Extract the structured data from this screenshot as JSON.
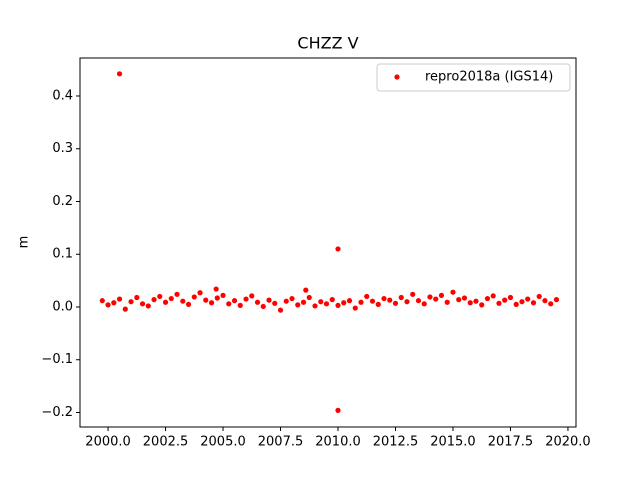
{
  "chart_data": {
    "type": "scatter",
    "title": "CHZZ V",
    "ylabel": "m",
    "xlim": [
      1998.78,
      2020.35
    ],
    "ylim": [
      -0.2275,
      0.472
    ],
    "xticks": [
      {
        "value": 2000,
        "label": "2000.0"
      },
      {
        "value": 2002.5,
        "label": "2002.5"
      },
      {
        "value": 2005,
        "label": "2005.0"
      },
      {
        "value": 2007.5,
        "label": "2007.5"
      },
      {
        "value": 2010,
        "label": "2010.0"
      },
      {
        "value": 2012.5,
        "label": "2012.5"
      },
      {
        "value": 2015,
        "label": "2015.0"
      },
      {
        "value": 2017.5,
        "label": "2017.5"
      },
      {
        "value": 2020,
        "label": "2020.0"
      }
    ],
    "yticks": [
      {
        "value": -0.2,
        "label": "−0.2"
      },
      {
        "value": -0.1,
        "label": "−0.1"
      },
      {
        "value": 0,
        "label": "0.0"
      },
      0.1,
      0.2,
      0.3,
      0.4
    ],
    "legend": "upper right",
    "series": [
      {
        "name": "repro2018a (IGS14)",
        "color": "#ff0000",
        "x": [
          1999.75,
          2000,
          2000.25,
          2000.5,
          2000.75,
          2001,
          2001.25,
          2001.5,
          2001.75,
          2002,
          2002.25,
          2002.5,
          2002.75,
          2003,
          2003.25,
          2003.5,
          2003.75,
          2004,
          2004.25,
          2004.5,
          2004.75,
          2005,
          2005.25,
          2005.5,
          2005.75,
          2006,
          2006.25,
          2006.5,
          2006.75,
          2007,
          2007.25,
          2007.5,
          2007.75,
          2008,
          2008.25,
          2008.5,
          2008.75,
          2009,
          2009.25,
          2009.5,
          2009.75,
          2010,
          2010.25,
          2010.5,
          2010.75,
          2011,
          2011.25,
          2011.5,
          2011.75,
          2012,
          2012.25,
          2012.5,
          2012.75,
          2013,
          2013.25,
          2013.5,
          2013.75,
          2014,
          2014.25,
          2014.5,
          2014.75,
          2015,
          2015.25,
          2015.5,
          2015.75,
          2016,
          2016.25,
          2016.5,
          2016.75,
          2017,
          2017.25,
          2017.5,
          2017.75,
          2018,
          2018.25,
          2018.5,
          2018.75,
          2019,
          2019.25,
          2019.5,
          2000.5,
          2004.7,
          2008.6,
          2010,
          2010
        ],
        "values": [
          0.012,
          0.004,
          0.008,
          0.015,
          -0.004,
          0.01,
          0.018,
          0.006,
          0.002,
          0.014,
          0.02,
          0.009,
          0.016,
          0.024,
          0.011,
          0.005,
          0.019,
          0.027,
          0.013,
          0.008,
          0.017,
          0.022,
          0.006,
          0.012,
          0.003,
          0.015,
          0.021,
          0.009,
          0.001,
          0.013,
          0.007,
          -0.006,
          0.011,
          0.016,
          0.004,
          0.009,
          0.018,
          0.002,
          0.01,
          0.006,
          0.014,
          0.003,
          0.008,
          0.012,
          -0.002,
          0.009,
          0.02,
          0.011,
          0.005,
          0.016,
          0.013,
          0.007,
          0.018,
          0.01,
          0.024,
          0.012,
          0.006,
          0.019,
          0.015,
          0.022,
          0.009,
          0.028,
          0.014,
          0.017,
          0.008,
          0.011,
          0.004,
          0.016,
          0.021,
          0.007,
          0.013,
          0.018,
          0.005,
          0.01,
          0.015,
          0.008,
          0.02,
          0.012,
          0.006,
          0.014,
          0.442,
          0.034,
          0.032,
          0.11,
          -0.196
        ]
      }
    ]
  }
}
